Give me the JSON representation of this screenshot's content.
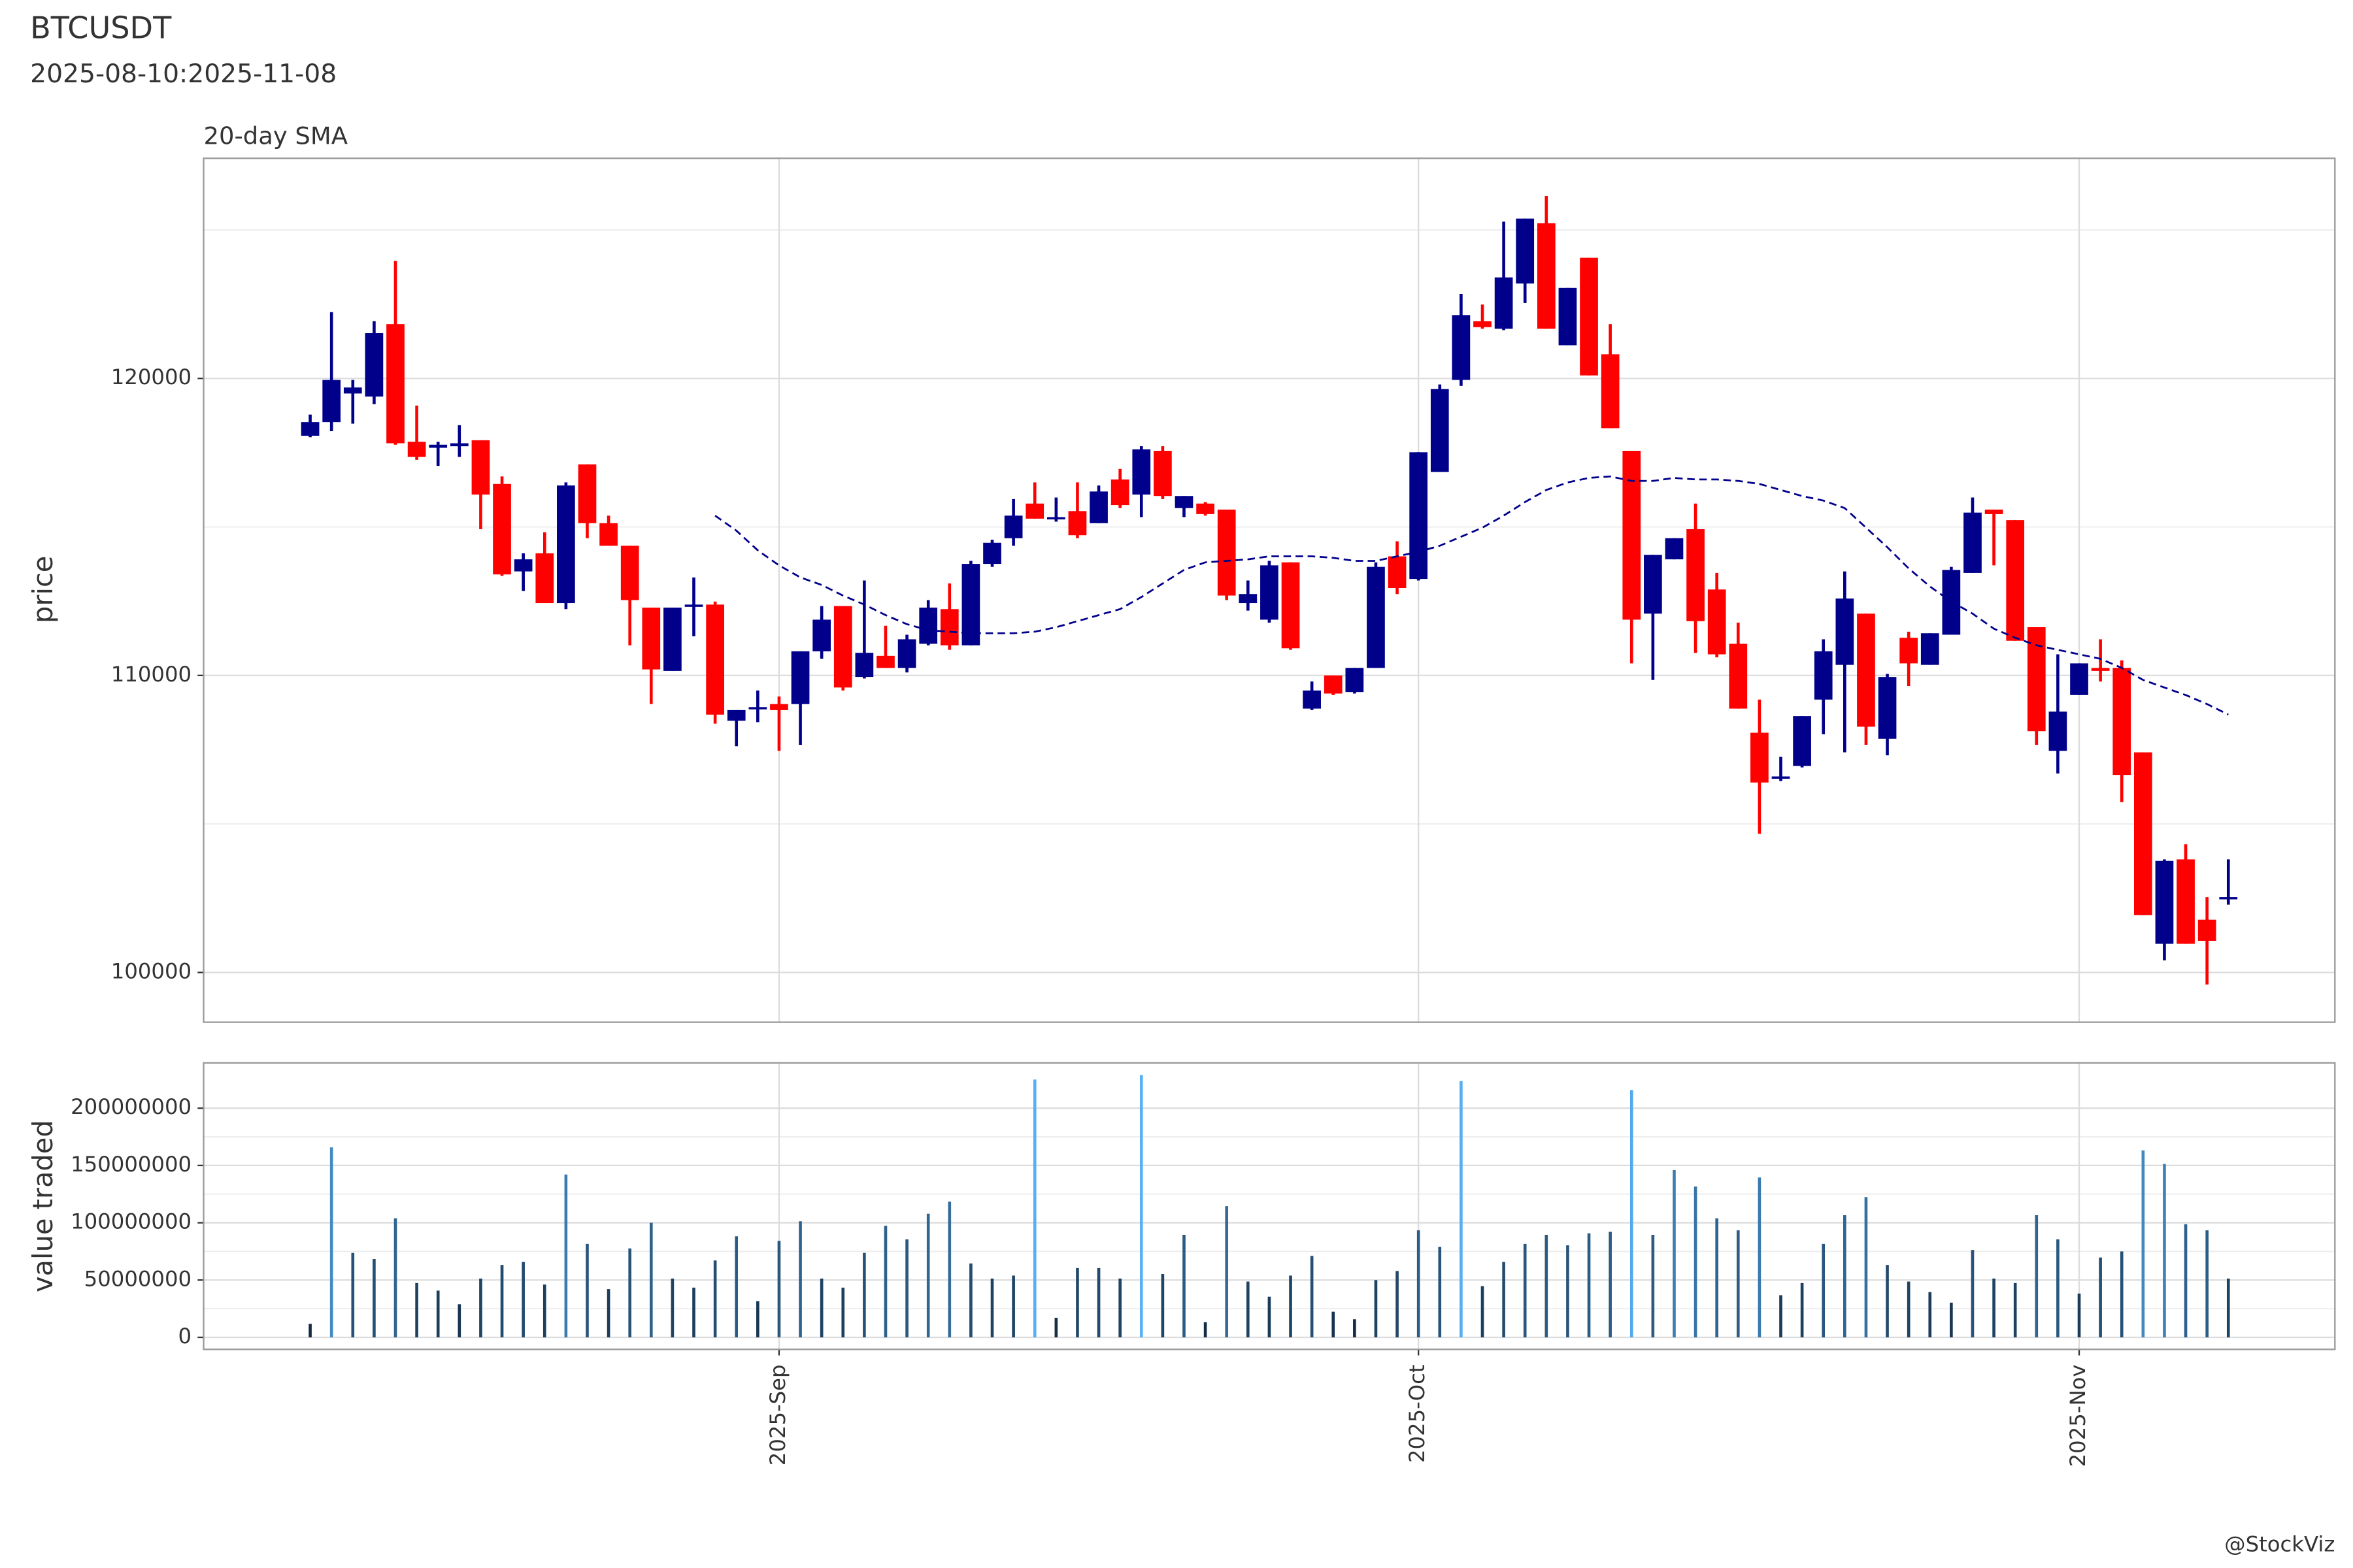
{
  "chart_data": [
    {
      "type": "candlestick",
      "title": "BTCUSDT",
      "subtitle": "2025-08-10:2025-11-08",
      "y_label": "price",
      "up_color": "#00008B",
      "down_color": "#FF0000",
      "grid": true,
      "xlim": [
        "2025-08-05",
        "2025-11-13"
      ],
      "xticks": [
        "2025-09-01",
        "2025-10-01",
        "2025-11-01"
      ],
      "ylim": [
        98325,
        127411
      ],
      "yticks": [
        100000,
        110000,
        120000
      ],
      "yticks_minor": [
        105000,
        115000,
        125000
      ],
      "x": [
        "2025-08-10",
        "2025-08-11",
        "2025-08-12",
        "2025-08-13",
        "2025-08-14",
        "2025-08-15",
        "2025-08-16",
        "2025-08-17",
        "2025-08-18",
        "2025-08-19",
        "2025-08-20",
        "2025-08-21",
        "2025-08-22",
        "2025-08-23",
        "2025-08-24",
        "2025-08-25",
        "2025-08-26",
        "2025-08-27",
        "2025-08-28",
        "2025-08-29",
        "2025-08-30",
        "2025-08-31",
        "2025-09-01",
        "2025-09-02",
        "2025-09-03",
        "2025-09-04",
        "2025-09-05",
        "2025-09-06",
        "2025-09-07",
        "2025-09-08",
        "2025-09-09",
        "2025-09-10",
        "2025-09-11",
        "2025-09-12",
        "2025-09-13",
        "2025-09-14",
        "2025-09-15",
        "2025-09-16",
        "2025-09-17",
        "2025-09-18",
        "2025-09-19",
        "2025-09-20",
        "2025-09-21",
        "2025-09-22",
        "2025-09-23",
        "2025-09-24",
        "2025-09-25",
        "2025-09-26",
        "2025-09-27",
        "2025-09-28",
        "2025-09-29",
        "2025-09-30",
        "2025-10-01",
        "2025-10-02",
        "2025-10-03",
        "2025-10-04",
        "2025-10-05",
        "2025-10-06",
        "2025-10-07",
        "2025-10-08",
        "2025-10-09",
        "2025-10-10",
        "2025-10-11",
        "2025-10-12",
        "2025-10-13",
        "2025-10-14",
        "2025-10-15",
        "2025-10-16",
        "2025-10-17",
        "2025-10-18",
        "2025-10-19",
        "2025-10-20",
        "2025-10-21",
        "2025-10-22",
        "2025-10-23",
        "2025-10-24",
        "2025-10-25",
        "2025-10-26",
        "2025-10-27",
        "2025-10-28",
        "2025-10-29",
        "2025-10-30",
        "2025-10-31",
        "2025-11-01",
        "2025-11-02",
        "2025-11-03",
        "2025-11-04",
        "2025-11-05",
        "2025-11-06",
        "2025-11-07",
        "2025-11-08"
      ],
      "open": [
        118071,
        118528,
        119492,
        119391,
        121827,
        117868,
        117665,
        117716,
        117919,
        116447,
        113503,
        114112,
        112437,
        117107,
        115127,
        114366,
        112284,
        110153,
        112335,
        112386,
        108477,
        108884,
        109036,
        109036,
        110812,
        112335,
        109950,
        110660,
        110254,
        111066,
        112234,
        111015,
        113756,
        114620,
        115787,
        115279,
        115533,
        115127,
        116599,
        116091,
        117564,
        115635,
        115787,
        115584,
        112437,
        111878,
        113808,
        108884,
        110000,
        109442,
        110254,
        114010,
        113249,
        116853,
        119949,
        121929,
        121675,
        123198,
        125228,
        121117,
        124061,
        120812,
        117564,
        112081,
        113909,
        114924,
        112894,
        111066,
        108071,
        106548,
        106955,
        109188,
        110356,
        112081,
        107868,
        111269,
        110356,
        111371,
        113452,
        115584,
        115229,
        111624,
        107462,
        109340,
        110254,
        110254,
        107411,
        100965,
        103807,
        101777,
        102487
      ],
      "high": [
        118782,
        122233,
        119949,
        121929,
        123959,
        119086,
        117868,
        118426,
        117919,
        116701,
        114112,
        114822,
        116498,
        117107,
        115381,
        114366,
        112284,
        112284,
        113299,
        112487,
        108833,
        109493,
        109290,
        110812,
        112335,
        112335,
        113198,
        111675,
        111371,
        112538,
        113097,
        113858,
        114569,
        115939,
        116498,
        115990,
        116498,
        116396,
        116954,
        117716,
        117716,
        116041,
        115838,
        115584,
        113198,
        113858,
        113808,
        109797,
        110000,
        110254,
        113808,
        114518,
        117513,
        119797,
        122843,
        122487,
        125279,
        125381,
        126142,
        123046,
        124061,
        121827,
        117564,
        114061,
        114620,
        115787,
        113452,
        111777,
        109188,
        107259,
        108630,
        111218,
        113503,
        112081,
        110051,
        111472,
        111421,
        113655,
        115990,
        115584,
        115229,
        111624,
        110711,
        110406,
        111218,
        110508,
        107411,
        103807,
        104315,
        102538,
        103807
      ],
      "low": [
        118020,
        118223,
        118477,
        119137,
        117767,
        117259,
        117056,
        117360,
        114924,
        113350,
        112843,
        112437,
        112234,
        114620,
        114366,
        111015,
        109036,
        110153,
        111320,
        108376,
        107615,
        108426,
        107462,
        107665,
        110559,
        109493,
        109899,
        110254,
        110102,
        111015,
        110863,
        111015,
        113655,
        114366,
        115279,
        115178,
        114620,
        115127,
        115635,
        115330,
        115939,
        115330,
        115381,
        112538,
        112183,
        111777,
        110863,
        108833,
        109340,
        109391,
        110254,
        112741,
        113198,
        116853,
        119746,
        121675,
        121624,
        122538,
        121675,
        121117,
        120102,
        118325,
        110406,
        109848,
        113909,
        110762,
        110610,
        108884,
        104670,
        106447,
        106904,
        108020,
        107411,
        107665,
        107310,
        109645,
        110356,
        111371,
        113452,
        113706,
        111168,
        107665,
        106700,
        109340,
        109797,
        105736,
        101929,
        100406,
        100965,
        99594,
        102284
      ],
      "close": [
        118528,
        119949,
        119695,
        121523,
        117817,
        117360,
        117767,
        117817,
        116091,
        113401,
        113909,
        112437,
        116396,
        115127,
        114366,
        112538,
        110203,
        112284,
        112386,
        108681,
        108833,
        108934,
        108833,
        110812,
        111878,
        109594,
        110762,
        110254,
        111218,
        112284,
        111015,
        113756,
        114467,
        115381,
        115279,
        115330,
        114721,
        116193,
        115736,
        117614,
        116041,
        116041,
        115432,
        112690,
        112741,
        113706,
        110914,
        109493,
        109391,
        110254,
        113655,
        112944,
        117513,
        119645,
        122132,
        121726,
        123401,
        125381,
        121675,
        123046,
        120102,
        118325,
        111878,
        114061,
        114620,
        111827,
        110711,
        108884,
        106396,
        106599,
        108630,
        110812,
        112589,
        108274,
        109949,
        110406,
        111421,
        113553,
        115482,
        115432,
        111168,
        108122,
        108782,
        110406,
        110153,
        106650,
        101929,
        103756,
        100965,
        101066,
        102538
      ],
      "series": [
        {
          "name": "20-day SMA",
          "color": "#00008B",
          "dashed": true,
          "values": [
            null,
            null,
            null,
            null,
            null,
            null,
            null,
            null,
            null,
            null,
            null,
            null,
            null,
            null,
            null,
            null,
            null,
            null,
            null,
            115381,
            114873,
            114213,
            113706,
            113300,
            113046,
            112690,
            112386,
            112031,
            111726,
            111523,
            111472,
            111421,
            111421,
            111421,
            111472,
            111624,
            111827,
            112031,
            112234,
            112640,
            113097,
            113553,
            113808,
            113858,
            113909,
            114010,
            114010,
            114010,
            113960,
            113858,
            113858,
            114010,
            114163,
            114366,
            114670,
            114975,
            115381,
            115838,
            116244,
            116498,
            116650,
            116701,
            116548,
            116548,
            116650,
            116599,
            116599,
            116548,
            116447,
            116244,
            116041,
            115888,
            115635,
            114975,
            114315,
            113604,
            112995,
            112487,
            112081,
            111574,
            111269,
            111015,
            110863,
            110711,
            110559,
            110254,
            109848,
            109594,
            109340,
            109036,
            108681
          ]
        }
      ]
    },
    {
      "type": "bar",
      "y_label": "value traded",
      "color_scale": [
        "#132B43",
        "#56B1F7"
      ],
      "grid": true,
      "xlim": [
        "2025-08-05",
        "2025-11-13"
      ],
      "xticks": [
        {
          "value": "2025-09-01",
          "label": "2025-Sep"
        },
        {
          "value": "2025-10-01",
          "label": "2025-Oct"
        },
        {
          "value": "2025-11-01",
          "label": "2025-Nov"
        }
      ],
      "ylim": [
        -10500000,
        239500000
      ],
      "yticks": [
        0,
        50000000,
        100000000,
        150000000,
        200000000
      ],
      "yticks_minor": [
        25000000,
        75000000,
        125000000,
        175000000
      ],
      "x": [
        "2025-08-10",
        "2025-08-11",
        "2025-08-12",
        "2025-08-13",
        "2025-08-14",
        "2025-08-15",
        "2025-08-16",
        "2025-08-17",
        "2025-08-18",
        "2025-08-19",
        "2025-08-20",
        "2025-08-21",
        "2025-08-22",
        "2025-08-23",
        "2025-08-24",
        "2025-08-25",
        "2025-08-26",
        "2025-08-27",
        "2025-08-28",
        "2025-08-29",
        "2025-08-30",
        "2025-08-31",
        "2025-09-01",
        "2025-09-02",
        "2025-09-03",
        "2025-09-04",
        "2025-09-05",
        "2025-09-06",
        "2025-09-07",
        "2025-09-08",
        "2025-09-09",
        "2025-09-10",
        "2025-09-11",
        "2025-09-12",
        "2025-09-13",
        "2025-09-14",
        "2025-09-15",
        "2025-09-16",
        "2025-09-17",
        "2025-09-18",
        "2025-09-19",
        "2025-09-20",
        "2025-09-21",
        "2025-09-22",
        "2025-09-23",
        "2025-09-24",
        "2025-09-25",
        "2025-09-26",
        "2025-09-27",
        "2025-09-28",
        "2025-09-29",
        "2025-09-30",
        "2025-10-01",
        "2025-10-02",
        "2025-10-03",
        "2025-10-04",
        "2025-10-05",
        "2025-10-06",
        "2025-10-07",
        "2025-10-08",
        "2025-10-09",
        "2025-10-10",
        "2025-10-11",
        "2025-10-12",
        "2025-10-13",
        "2025-10-14",
        "2025-10-15",
        "2025-10-16",
        "2025-10-17",
        "2025-10-18",
        "2025-10-19",
        "2025-10-20",
        "2025-10-21",
        "2025-10-22",
        "2025-10-23",
        "2025-10-24",
        "2025-10-25",
        "2025-10-26",
        "2025-10-27",
        "2025-10-28",
        "2025-10-29",
        "2025-10-30",
        "2025-10-31",
        "2025-11-01",
        "2025-11-02",
        "2025-11-03",
        "2025-11-04",
        "2025-11-05",
        "2025-11-06",
        "2025-11-07",
        "2025-11-08"
      ],
      "values": [
        11800000,
        165800000,
        73700000,
        68400000,
        103900000,
        47400000,
        40800000,
        28900000,
        51300000,
        63200000,
        65800000,
        46100000,
        142100000,
        81600000,
        42100000,
        77600000,
        100000000,
        51300000,
        43400000,
        67100000,
        88200000,
        31600000,
        84200000,
        101300000,
        51300000,
        43400000,
        73700000,
        97400000,
        85500000,
        107900000,
        118400000,
        64500000,
        51300000,
        53900000,
        225000000,
        17100000,
        60500000,
        60500000,
        51300000,
        229000000,
        55300000,
        89500000,
        13200000,
        114500000,
        48700000,
        35500000,
        53900000,
        71100000,
        22400000,
        15800000,
        50000000,
        57900000,
        93400000,
        78900000,
        223700000,
        44700000,
        65800000,
        81600000,
        89500000,
        80300000,
        90800000,
        92100000,
        215800000,
        89500000,
        146000000,
        131600000,
        103900000,
        93400000,
        139500000,
        36800000,
        47400000,
        81600000,
        106600000,
        122400000,
        63200000,
        48700000,
        39500000,
        30300000,
        76300000,
        51300000,
        47400000,
        106600000,
        85500000,
        38200000,
        69700000,
        75000000,
        163200000,
        151300000,
        98700000,
        93400000,
        51300000
      ]
    }
  ],
  "caption": "@StockViz"
}
